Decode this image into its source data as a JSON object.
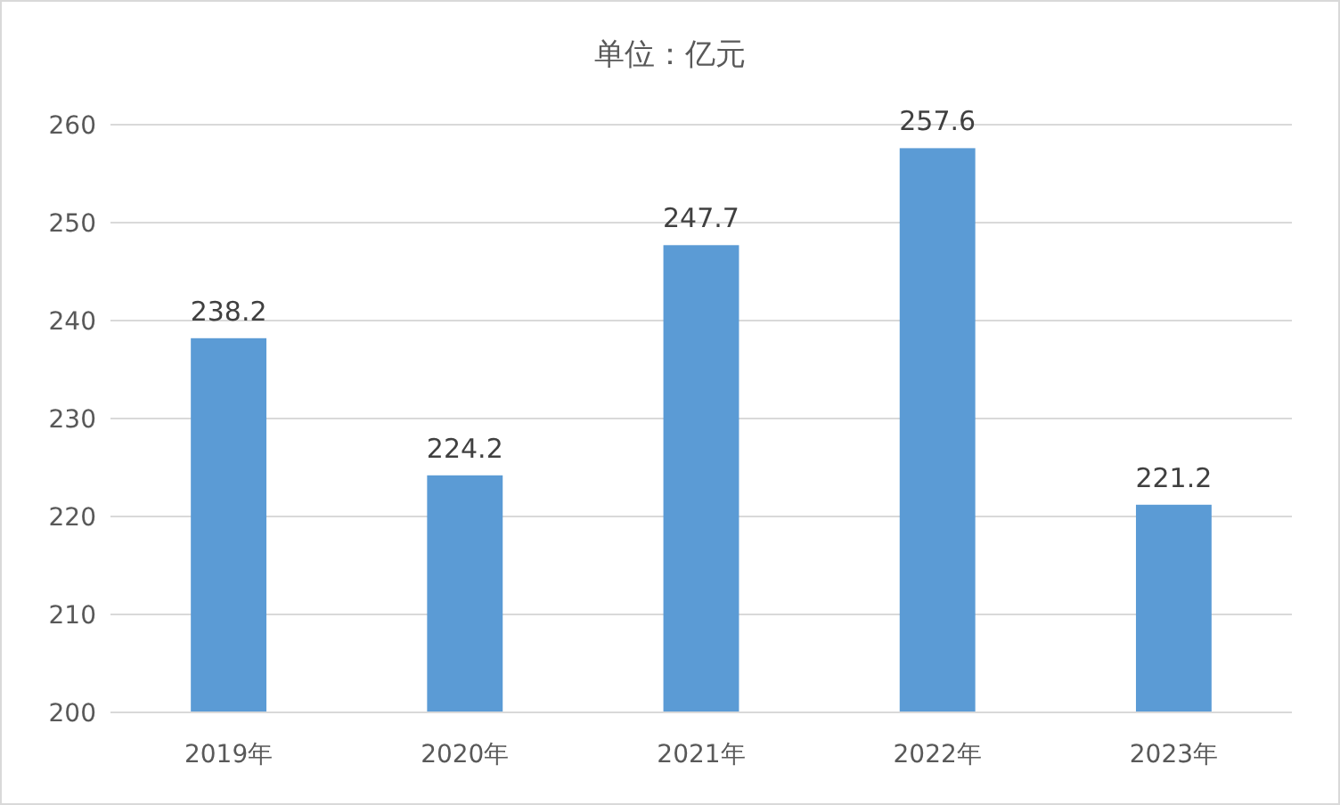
{
  "chart_data": {
    "type": "bar",
    "title": "单位：亿元",
    "categories": [
      "2019年",
      "2020年",
      "2021年",
      "2022年",
      "2023年"
    ],
    "values": [
      238.2,
      224.2,
      247.7,
      257.6,
      221.2
    ],
    "color": "#5b9bd5",
    "ylim": [
      200,
      260
    ],
    "yticks": [
      200,
      210,
      220,
      230,
      240,
      250,
      260
    ],
    "grid": "y",
    "data_labels": true
  }
}
